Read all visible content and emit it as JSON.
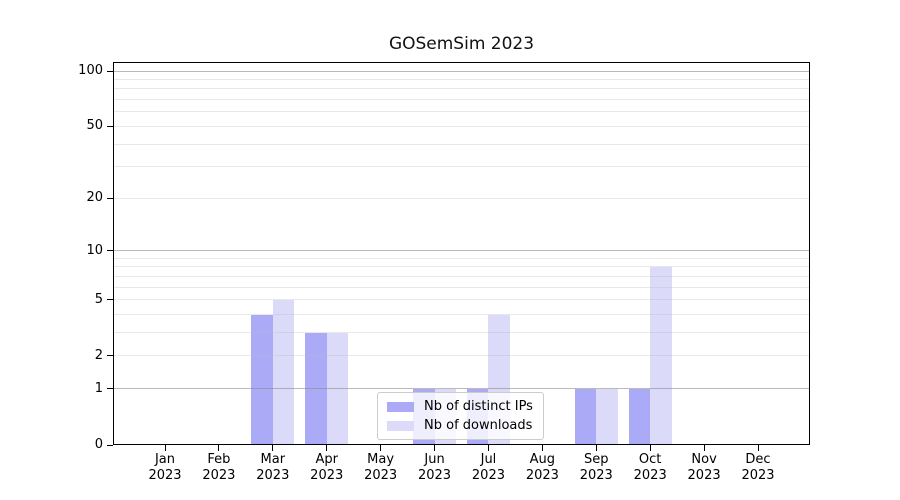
{
  "title": "GOSemSim 2023",
  "legend": {
    "items": [
      {
        "label": "Nb of distinct IPs"
      },
      {
        "label": "Nb of downloads"
      }
    ]
  },
  "chart_data": {
    "type": "bar",
    "title": "GOSemSim 2023",
    "categories": [
      "Jan",
      "Feb",
      "Mar",
      "Apr",
      "May",
      "Jun",
      "Jul",
      "Aug",
      "Sep",
      "Oct",
      "Nov",
      "Dec"
    ],
    "category_year": "2023",
    "series": [
      {
        "name": "Nb of distinct IPs",
        "color": "#aaaaf6",
        "values": [
          0,
          0,
          4,
          3,
          0,
          1,
          1,
          0,
          1,
          1,
          0,
          0
        ]
      },
      {
        "name": "Nb of downloads",
        "color": "#dbdbf9",
        "values": [
          0,
          0,
          5,
          3,
          0,
          1,
          4,
          0,
          1,
          8,
          0,
          0
        ]
      }
    ],
    "y_scale": "log1p",
    "y_ticks": [
      0,
      1,
      2,
      5,
      10,
      20,
      50,
      100
    ],
    "y_major_grid_values": [
      1,
      10,
      100
    ],
    "y_minor_grid_values": [
      2,
      3,
      4,
      5,
      6,
      7,
      8,
      9,
      20,
      30,
      40,
      50,
      60,
      70,
      80,
      90
    ],
    "ylim": [
      0,
      112
    ],
    "grid": true,
    "legend_position": "lower center",
    "background": "#ffffff",
    "spine_color": "#000000"
  }
}
